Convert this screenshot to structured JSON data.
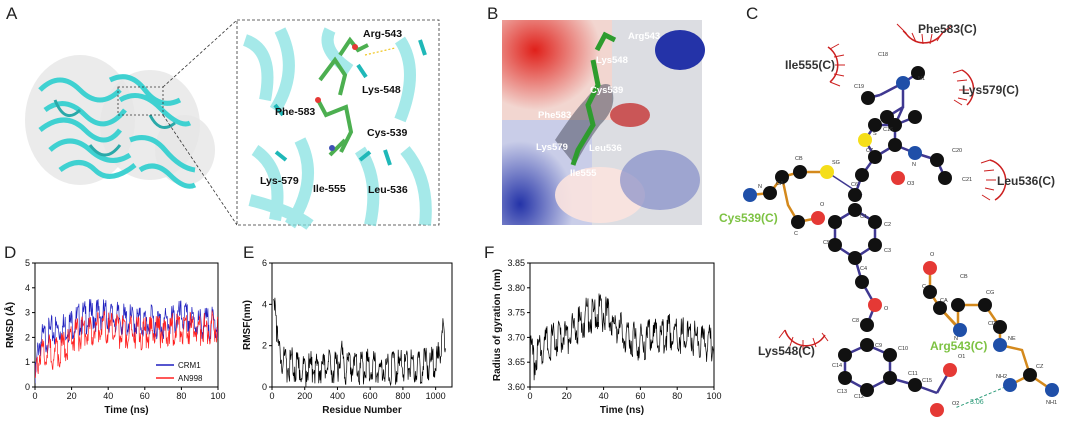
{
  "panels": {
    "A": {
      "letter": "A",
      "residues": [
        "Arg-543",
        "Lys-548",
        "Phe-583",
        "Cys-539",
        "Lys-579",
        "Ile-555",
        "Leu-536"
      ]
    },
    "B": {
      "letter": "B",
      "residues": [
        "Arg543",
        "Lys548",
        "Cys539",
        "Phe583",
        "Lys579",
        "Leu536",
        "Ile555"
      ]
    },
    "C": {
      "letter": "C",
      "hydrophobic": [
        "Phe583(C)",
        "Ile555(C)",
        "Lys579(C)",
        "Leu536(C)",
        "Lys548(C)"
      ],
      "covalent": [
        "Cys539(C)",
        "Arg543(C)"
      ],
      "hbond_distance": "3.06",
      "atom_labels": [
        "C18",
        "C19",
        "N1",
        "C16",
        "S",
        "C7",
        "N",
        "C20",
        "C21",
        "O3",
        "C6",
        "C1",
        "C2",
        "C3",
        "C5",
        "C4",
        "O",
        "C8",
        "C9",
        "C10",
        "C14",
        "C13",
        "C12",
        "C11",
        "C15",
        "O1",
        "O2",
        "CB",
        "CA",
        "SG",
        "N",
        "C",
        "O",
        "CA",
        "CB",
        "CG",
        "CD",
        "NE",
        "CZ",
        "NH2",
        "NH1",
        "N",
        "O",
        "C"
      ]
    },
    "D": {
      "letter": "D"
    },
    "E": {
      "letter": "E"
    },
    "F": {
      "letter": "F"
    }
  },
  "chart_data": [
    {
      "id": "D",
      "type": "line",
      "xlabel": "Time (ns)",
      "ylabel": "RMSD (Å)",
      "xlim": [
        0,
        100
      ],
      "ylim": [
        0,
        5
      ],
      "xticks": [
        0,
        20,
        40,
        60,
        80,
        100
      ],
      "yticks": [
        0,
        1,
        2,
        3,
        4,
        5
      ],
      "legend_position": "bottom-right",
      "series": [
        {
          "name": "CRM1",
          "color": "#1f1fbf",
          "x": [
            0,
            2,
            5,
            10,
            15,
            20,
            25,
            30,
            35,
            40,
            45,
            50,
            55,
            60,
            65,
            70,
            75,
            80,
            85,
            90,
            95,
            100
          ],
          "y": [
            0.5,
            2.1,
            2.3,
            2.6,
            2.7,
            2.9,
            3.1,
            3.2,
            3.3,
            3.2,
            3.1,
            3.0,
            3.0,
            2.9,
            3.0,
            2.9,
            3.0,
            3.2,
            3.0,
            2.9,
            2.9,
            2.9
          ]
        },
        {
          "name": "AN998",
          "color": "#ff2020",
          "x": [
            0,
            2,
            5,
            10,
            15,
            20,
            25,
            30,
            35,
            40,
            45,
            50,
            55,
            60,
            65,
            70,
            75,
            80,
            85,
            90,
            95,
            100
          ],
          "y": [
            0.4,
            1.6,
            1.9,
            1.7,
            1.9,
            2.3,
            2.5,
            2.6,
            2.8,
            2.7,
            2.6,
            2.5,
            2.6,
            2.5,
            2.6,
            2.6,
            2.7,
            2.8,
            2.7,
            2.7,
            2.7,
            2.8
          ]
        }
      ]
    },
    {
      "id": "E",
      "type": "line",
      "xlabel": "Residue Number",
      "ylabel": "RMSF(nm)",
      "xlim": [
        0,
        1100
      ],
      "ylim": [
        0,
        6
      ],
      "xticks": [
        0,
        200,
        400,
        600,
        800,
        1000
      ],
      "yticks": [
        0,
        2,
        4,
        6
      ],
      "series": [
        {
          "name": "",
          "color": "#000000",
          "x": [
            10,
            20,
            30,
            40,
            60,
            80,
            100,
            120,
            150,
            200,
            250,
            300,
            350,
            400,
            420,
            450,
            500,
            550,
            600,
            650,
            700,
            750,
            800,
            850,
            900,
            950,
            1000,
            1030,
            1040,
            1050,
            1060
          ],
          "y": [
            4.5,
            5.2,
            3.0,
            2.2,
            1.8,
            1.5,
            1.4,
            1.6,
            1.3,
            1.2,
            1.4,
            1.3,
            1.4,
            1.3,
            2.2,
            1.3,
            1.4,
            1.3,
            1.5,
            1.3,
            1.4,
            1.3,
            1.5,
            1.4,
            1.3,
            1.6,
            1.5,
            2.0,
            3.5,
            2.6,
            1.7
          ]
        }
      ]
    },
    {
      "id": "F",
      "type": "line",
      "xlabel": "Time (ns)",
      "ylabel": "Radius of gyration (nm)",
      "xlim": [
        0,
        100
      ],
      "ylim": [
        3.6,
        3.85
      ],
      "xticks": [
        0,
        20,
        40,
        60,
        80,
        100
      ],
      "yticks": [
        3.6,
        3.65,
        3.7,
        3.75,
        3.8,
        3.85
      ],
      "series": [
        {
          "name": "",
          "color": "#000000",
          "x": [
            0,
            2,
            5,
            10,
            15,
            20,
            25,
            30,
            35,
            40,
            45,
            50,
            55,
            60,
            65,
            70,
            75,
            80,
            85,
            90,
            95,
            100
          ],
          "y": [
            3.69,
            3.67,
            3.7,
            3.71,
            3.72,
            3.72,
            3.74,
            3.76,
            3.77,
            3.77,
            3.75,
            3.73,
            3.72,
            3.71,
            3.72,
            3.72,
            3.73,
            3.73,
            3.72,
            3.72,
            3.71,
            3.71
          ]
        }
      ]
    }
  ],
  "colors": {
    "protein": "#3fd1d1",
    "ligand": "#4caf50",
    "hydrophobic_arc": "#cc1f1f",
    "covalent_label": "#7dc243",
    "bond_dark": "#3f3891",
    "bond_orange": "#d4891c"
  }
}
